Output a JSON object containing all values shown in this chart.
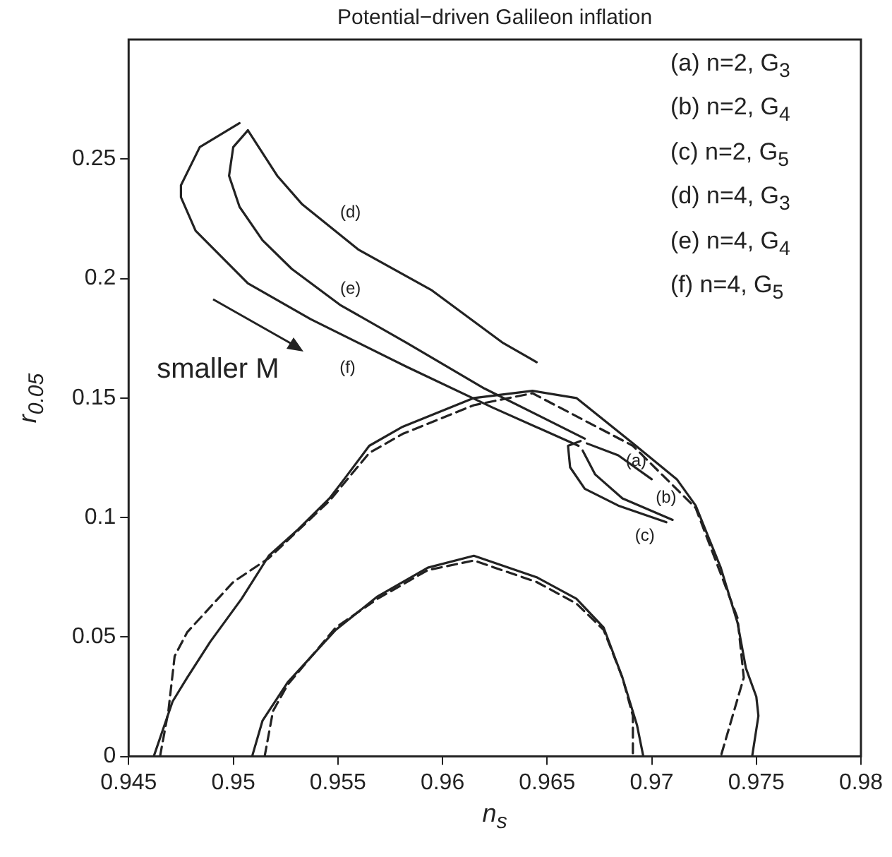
{
  "chart_data": {
    "type": "line",
    "title": "Potential−driven Galileon inflation",
    "xlabel": "n$_{s}$",
    "ylabel": "r$_{0.05}$",
    "xlim": [
      0.945,
      0.98
    ],
    "xticks": [
      0.945,
      0.95,
      0.955,
      0.96,
      0.965,
      0.97,
      0.975,
      0.98
    ],
    "ylim": [
      0,
      0.3
    ],
    "yticks": [
      0,
      0.05,
      0.1,
      0.15,
      0.2,
      0.25
    ],
    "grid": false,
    "legend": false,
    "marker": "none",
    "series": [
      {
        "color": "#222222",
        "line_style": "solid",
        "x": [
          0.9462,
          0.9471,
          0.9478,
          0.9489,
          0.9504,
          0.9517,
          0.9531,
          0.9546,
          0.9553,
          0.9565,
          0.9581,
          0.9615,
          0.9643,
          0.9664,
          0.9691,
          0.9712,
          0.9721,
          0.9733,
          0.9741,
          0.9745,
          0.975,
          0.9751,
          0.9748
        ],
        "values": [
          0,
          0.023,
          0.033,
          0.048,
          0.066,
          0.084,
          0.095,
          0.108,
          0.116,
          0.13,
          0.138,
          0.15,
          0.153,
          0.15,
          0.131,
          0.116,
          0.105,
          0.079,
          0.056,
          0.037,
          0.025,
          0.017,
          0
        ]
      },
      {
        "color": "#222222",
        "line_style": "dashed",
        "x": [
          0.9465,
          0.9469,
          0.9472,
          0.9478,
          0.95,
          0.9517,
          0.9546,
          0.9565,
          0.9581,
          0.9615,
          0.9643,
          0.9691,
          0.9721,
          0.9741,
          0.9744,
          0.9733
        ],
        "values": [
          0,
          0.019,
          0.042,
          0.052,
          0.073,
          0.083,
          0.107,
          0.127,
          0.135,
          0.147,
          0.152,
          0.13,
          0.104,
          0.058,
          0.033,
          0
        ]
      },
      {
        "color": "#222222",
        "line_style": "solid",
        "x": [
          0.9509,
          0.9514,
          0.9526,
          0.9549,
          0.9569,
          0.9593,
          0.9615,
          0.9645,
          0.9664,
          0.9677,
          0.9686,
          0.9693,
          0.9696
        ],
        "values": [
          0,
          0.015,
          0.031,
          0.053,
          0.067,
          0.079,
          0.084,
          0.075,
          0.066,
          0.054,
          0.033,
          0.013,
          0
        ]
      },
      {
        "color": "#222222",
        "line_style": "dashed",
        "x": [
          0.9515,
          0.9519,
          0.9526,
          0.9549,
          0.9569,
          0.9593,
          0.9615,
          0.9645,
          0.9664,
          0.9677,
          0.9686,
          0.9691,
          0.9691
        ],
        "values": [
          0,
          0.019,
          0.03,
          0.054,
          0.066,
          0.078,
          0.082,
          0.073,
          0.064,
          0.053,
          0.033,
          0.017,
          0
        ]
      },
      {
        "color": "#222222",
        "line_style": "solid",
        "x": [
          0.9669,
          0.9684,
          0.97
        ],
        "values": [
          0.131,
          0.126,
          0.116
        ]
      },
      {
        "color": "#222222",
        "line_style": "solid",
        "x": [
          0.9667,
          0.9673,
          0.9686,
          0.971
        ],
        "values": [
          0.128,
          0.118,
          0.108,
          0.099
        ]
      },
      {
        "color": "#222222",
        "line_style": "solid",
        "x": [
          0.9666,
          0.966,
          0.9661,
          0.9668,
          0.9684,
          0.9707
        ],
        "values": [
          0.132,
          0.13,
          0.121,
          0.112,
          0.105,
          0.098
        ]
      },
      {
        "color": "#222222",
        "line_style": "solid",
        "x": [
          0.9507,
          0.9521,
          0.9533,
          0.956,
          0.9595,
          0.9629,
          0.9645
        ],
        "values": [
          0.262,
          0.243,
          0.231,
          0.212,
          0.195,
          0.173,
          0.165
        ]
      },
      {
        "color": "#222222",
        "line_style": "solid",
        "x": [
          0.9507,
          0.95,
          0.9498,
          0.9503,
          0.9514,
          0.9528,
          0.9551,
          0.9583,
          0.962,
          0.9668
        ],
        "values": [
          0.262,
          0.255,
          0.243,
          0.23,
          0.216,
          0.204,
          0.189,
          0.173,
          0.154,
          0.133
        ]
      },
      {
        "color": "#222222",
        "line_style": "solid",
        "x": [
          0.9503,
          0.9484,
          0.9475,
          0.9475,
          0.9482,
          0.9507,
          0.9537,
          0.9583,
          0.9624,
          0.9665
        ],
        "values": [
          0.265,
          0.255,
          0.239,
          0.234,
          0.22,
          0.198,
          0.183,
          0.163,
          0.146,
          0.13
        ]
      }
    ],
    "annotations": [
      "(a) n=2, G$_{3}$",
      "(b) n=2, G$_{4}$",
      "(c) n=2, G$_{5}$",
      "(d) n=4, G$_{3}$",
      "(e) n=4, G$_{4}$",
      "(f) n=4, G$_{5}$",
      "(a)",
      "(b)",
      "(c)",
      "(d)",
      "(e)",
      "(f)",
      "smaller M"
    ]
  }
}
